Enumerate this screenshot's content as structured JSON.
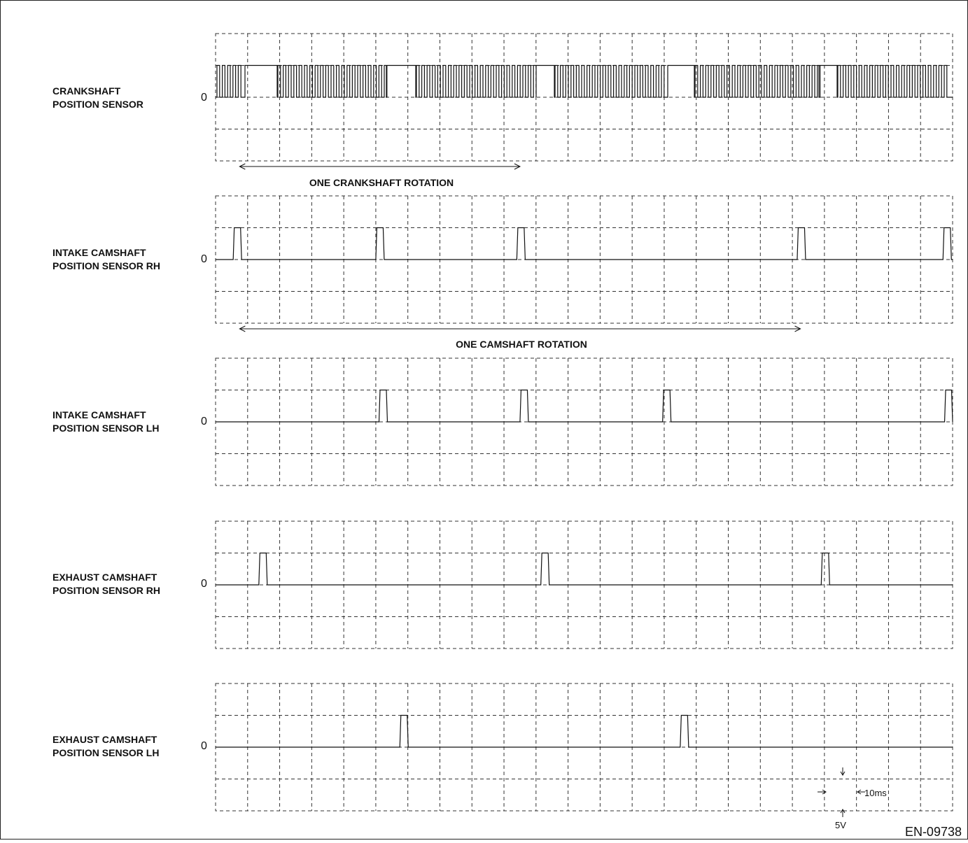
{
  "figure_code": "EN-09738",
  "zero_label": "0",
  "channels": [
    {
      "label_line1": "CRANKSHAFT",
      "label_line2": "POSITION SENSOR",
      "signal": "crank"
    },
    {
      "label_line1": "INTAKE CAMSHAFT",
      "label_line2": "POSITION SENSOR RH",
      "signal": "pulse",
      "pulse_divisions": [
        0.55,
        5.0,
        9.4,
        18.15,
        22.7
      ]
    },
    {
      "label_line1": "INTAKE CAMSHAFT",
      "label_line2": "POSITION SENSOR LH",
      "signal": "pulse",
      "pulse_divisions": [
        5.1,
        9.5,
        13.95,
        22.75
      ]
    },
    {
      "label_line1": "EXHAUST CAMSHAFT",
      "label_line2": "POSITION SENSOR RH",
      "signal": "pulse",
      "pulse_divisions": [
        1.35,
        10.15,
        18.9
      ]
    },
    {
      "label_line1": "EXHAUST CAMSHAFT",
      "label_line2": "POSITION SENSOR LH",
      "signal": "pulse",
      "pulse_divisions": [
        5.75,
        14.5
      ]
    }
  ],
  "spans": [
    {
      "label": "ONE CRANKSHAFT ROTATION",
      "from_division": 0.75,
      "to_division": 9.5
    },
    {
      "label": "ONE CAMSHAFT ROTATION",
      "from_division": 0.75,
      "to_division": 18.25
    }
  ],
  "scale": {
    "time_per_division": "10ms",
    "volts_per_division": "5V"
  }
}
